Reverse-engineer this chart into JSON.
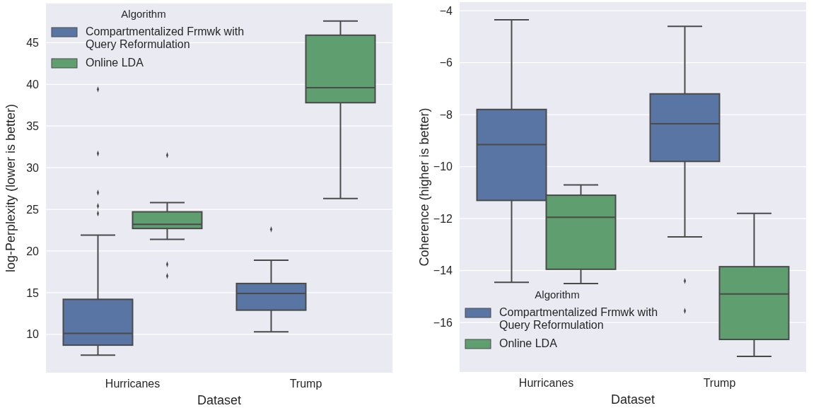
{
  "chart_data": [
    {
      "type": "box",
      "xlabel": "Dataset",
      "ylabel": "log-Perplexity (lower is better)",
      "categories": [
        "Hurricanes",
        "Trump"
      ],
      "ylim": [
        5.4,
        49.7
      ],
      "yticks": [
        10,
        15,
        20,
        25,
        30,
        35,
        40,
        45
      ],
      "grid": "y",
      "legend": "top left",
      "legend_title": "Algorithm",
      "series": [
        {
          "name": "Compartmentalized Frmwk with Query Reformulation",
          "color": "#5975a4",
          "boxes": [
            {
              "low": 7.5,
              "q1": 8.7,
              "median": 10.1,
              "q3": 14.2,
              "high": 21.9,
              "outliers": [
                24.5,
                25.4,
                27.0,
                31.7,
                39.4
              ]
            },
            {
              "low": 10.3,
              "q1": 12.9,
              "median": 14.9,
              "q3": 16.1,
              "high": 18.9,
              "outliers": [
                22.6
              ]
            }
          ]
        },
        {
          "name": "Online LDA",
          "color": "#5f9e6e",
          "boxes": [
            {
              "low": 21.4,
              "q1": 22.7,
              "median": 23.2,
              "q3": 24.7,
              "high": 25.8,
              "outliers": [
                31.5,
                18.4,
                17.0
              ]
            },
            {
              "low": 26.3,
              "q1": 37.8,
              "median": 39.6,
              "q3": 45.9,
              "high": 47.6
            }
          ]
        }
      ]
    },
    {
      "type": "box",
      "xlabel": "Dataset",
      "ylabel": "Coherence (higher is better)",
      "categories": [
        "Hurricanes",
        "Trump"
      ],
      "ylim": [
        -17.9,
        -3.67
      ],
      "yticks": [
        {
          "value": -16,
          "label": "−16"
        },
        {
          "value": -14,
          "label": "−14"
        },
        {
          "value": -12,
          "label": "−12"
        },
        {
          "value": -10,
          "label": "−10"
        },
        {
          "value": -8,
          "label": "−8"
        },
        {
          "value": -6,
          "label": "−6"
        },
        {
          "value": -4,
          "label": "−4"
        }
      ],
      "grid": "y",
      "legend": "bottom left",
      "legend_title": "Algorithm",
      "series": [
        {
          "name": "Compartmentalized Frmwk with Query Reformulation",
          "color": "#5975a4",
          "boxes": [
            {
              "low": -14.45,
              "q1": -11.3,
              "median": -9.15,
              "q3": -7.8,
              "high": -4.35
            },
            {
              "low": -12.7,
              "q1": -9.8,
              "median": -8.35,
              "q3": -7.2,
              "high": -4.6,
              "outliers": [
                -14.4,
                -15.55
              ]
            }
          ]
        },
        {
          "name": "Online LDA",
          "color": "#5f9e6e",
          "boxes": [
            {
              "low": -14.5,
              "q1": -13.95,
              "median": -11.95,
              "q3": -11.1,
              "high": -10.7
            },
            {
              "low": -17.3,
              "q1": -16.65,
              "median": -14.9,
              "q3": -13.85,
              "high": -11.8
            }
          ]
        }
      ]
    }
  ]
}
